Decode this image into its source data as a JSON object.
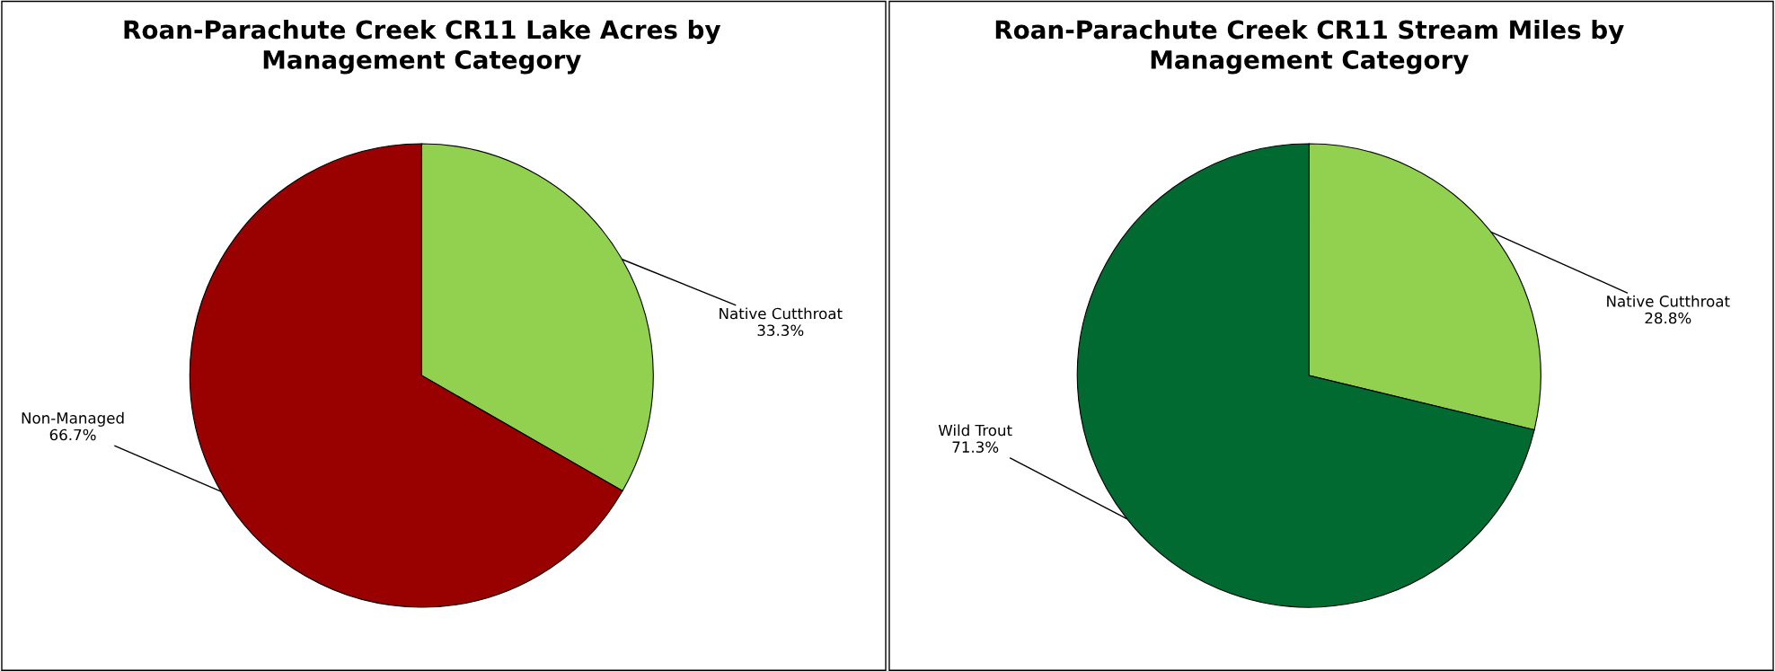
{
  "chart_data": [
    {
      "type": "pie",
      "title": "Roan-Parachute Creek CR11 Lake Acres by\nManagement Category",
      "categories": [
        "Native Cutthroat",
        "Non-Managed"
      ],
      "values": [
        33.3,
        66.7
      ],
      "colors": [
        "#92d050",
        "#990000"
      ],
      "value_labels": [
        "33.3%",
        "66.7%"
      ],
      "legend": false
    },
    {
      "type": "pie",
      "title": "Roan-Parachute Creek CR11 Stream Miles by\nManagement Category",
      "categories": [
        "Native Cutthroat",
        "Wild Trout"
      ],
      "values": [
        28.8,
        71.3
      ],
      "colors": [
        "#92d050",
        "#006a31"
      ],
      "value_labels": [
        "28.8%",
        "71.3%"
      ],
      "legend": false
    }
  ]
}
